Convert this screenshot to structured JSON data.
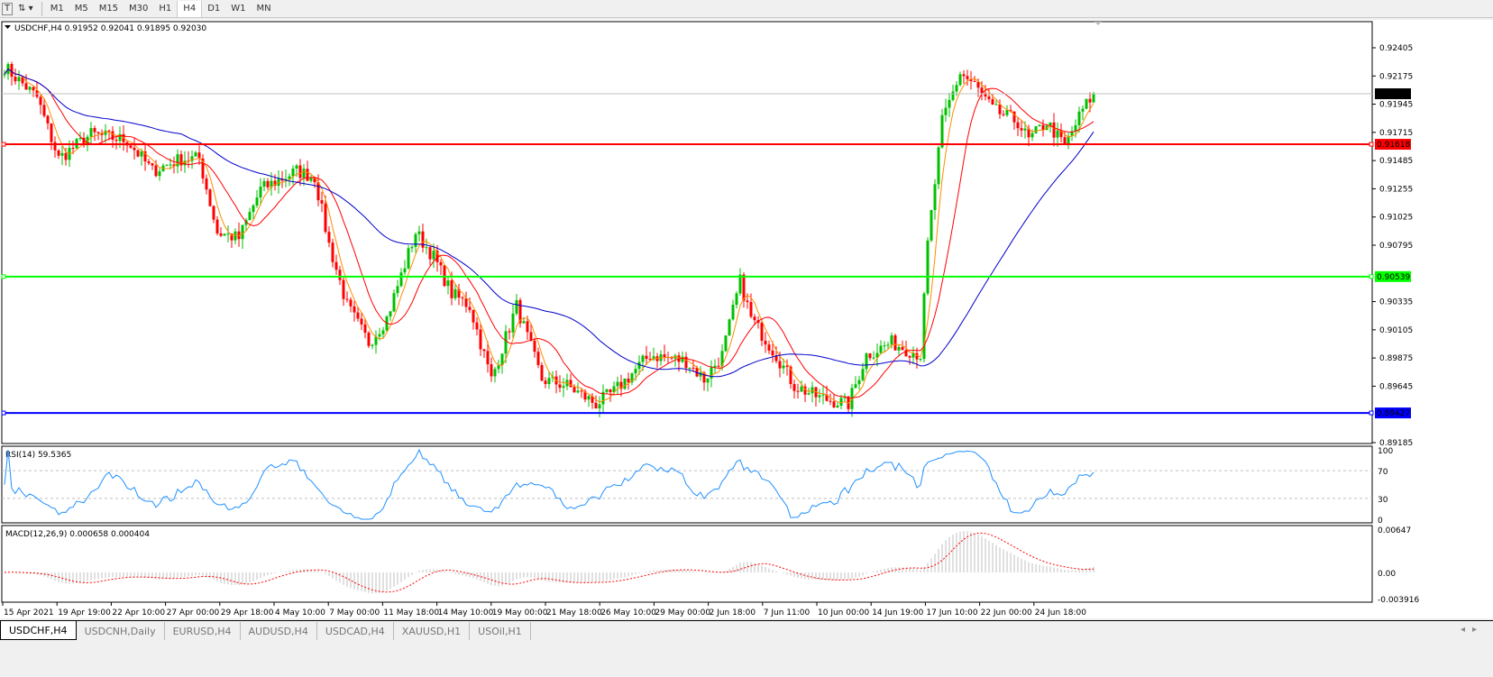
{
  "toolbar": {
    "text_icon": "T",
    "draw_icon": "crosshair-arrows-icon",
    "timeframes": [
      "M1",
      "M5",
      "M15",
      "M30",
      "H1",
      "H4",
      "D1",
      "W1",
      "MN"
    ],
    "active": "H4"
  },
  "chart": {
    "header": "USDCHF,H4  0.91952 0.92041 0.91895 0.92030",
    "price_ticks": [
      "0.92405",
      "0.92175",
      "0.91945",
      "0.91715",
      "0.91485",
      "0.91255",
      "0.91025",
      "0.90795",
      "0.90335",
      "0.90105",
      "0.89875",
      "0.89645",
      "0.89185"
    ],
    "price_tick_values": [
      0.92405,
      0.92175,
      0.91945,
      0.91715,
      0.91485,
      0.91255,
      0.91025,
      0.90795,
      0.90335,
      0.90105,
      0.89875,
      0.89645,
      0.89185
    ],
    "current_price": {
      "label": "0.92030",
      "value": 0.9203,
      "color": "#000000"
    },
    "levels": [
      {
        "label": "0.91618",
        "value": 0.91618,
        "color": "#ff0000"
      },
      {
        "label": "0.90539",
        "value": 0.90539,
        "color": "#00ff00"
      },
      {
        "label": "0.89427",
        "value": 0.89427,
        "color": "#0000ff"
      }
    ],
    "time_labels": [
      "15 Apr 2021",
      "19 Apr 19:00",
      "22 Apr 10:00",
      "27 Apr 00:00",
      "29 Apr 18:00",
      "4 May 10:00",
      "7 May 00:00",
      "11 May 18:00",
      "14 May 10:00",
      "19 May 00:00",
      "21 May 18:00",
      "26 May 10:00",
      "29 May 00:00",
      "2 Jun 18:00",
      "7 Jun 11:00",
      "10 Jun 00:00",
      "14 Jun 19:00",
      "17 Jun 10:00",
      "22 Jun 00:00",
      "24 Jun 18:00"
    ],
    "colors": {
      "bull": "#00c000",
      "bear": "#ff0000",
      "ma_fast": "#ff8c00",
      "ma_mid": "#ff0000",
      "ma_slow": "#0000cc",
      "rsi": "#1e90ff",
      "macd_hist": "#c0c0c0",
      "macd_signal": "#ff0000"
    }
  },
  "chart_data": {
    "type": "candlestick",
    "symbol": "USDCHF",
    "timeframe": "H4",
    "close_path": [
      [
        0,
        0.9225
      ],
      [
        9,
        0.92
      ],
      [
        15,
        0.915
      ],
      [
        24,
        0.917
      ],
      [
        34,
        0.9165
      ],
      [
        41,
        0.914
      ],
      [
        49,
        0.915
      ],
      [
        54,
        0.915
      ],
      [
        59,
        0.909
      ],
      [
        65,
        0.9085
      ],
      [
        71,
        0.9125
      ],
      [
        81,
        0.914
      ],
      [
        86,
        0.9135
      ],
      [
        90,
        0.908
      ],
      [
        95,
        0.903
      ],
      [
        101,
        0.9
      ],
      [
        106,
        0.902
      ],
      [
        114,
        0.909
      ],
      [
        119,
        0.907
      ],
      [
        124,
        0.904
      ],
      [
        129,
        0.903
      ],
      [
        135,
        0.897
      ],
      [
        142,
        0.903
      ],
      [
        149,
        0.897
      ],
      [
        156,
        0.8965
      ],
      [
        164,
        0.895
      ],
      [
        169,
        0.896
      ],
      [
        179,
        0.899
      ],
      [
        189,
        0.8985
      ],
      [
        194,
        0.897
      ],
      [
        199,
        0.899
      ],
      [
        204,
        0.905
      ],
      [
        207,
        0.902
      ],
      [
        214,
        0.899
      ],
      [
        219,
        0.8965
      ],
      [
        226,
        0.8955
      ],
      [
        234,
        0.895
      ],
      [
        239,
        0.899
      ],
      [
        246,
        0.9
      ],
      [
        254,
        0.899
      ],
      [
        256,
        0.908
      ],
      [
        260,
        0.918
      ],
      [
        265,
        0.922
      ],
      [
        269,
        0.921
      ],
      [
        274,
        0.919
      ],
      [
        281,
        0.918
      ],
      [
        284,
        0.9165
      ],
      [
        289,
        0.918
      ],
      [
        294,
        0.916
      ],
      [
        299,
        0.919
      ],
      [
        302,
        0.9203
      ]
    ],
    "ylim": [
      0.89185,
      0.92405
    ]
  },
  "rsi": {
    "label": "RSI(14) 59.5365",
    "ticks": [
      "100",
      "70",
      "30",
      "0"
    ],
    "levels": [
      70,
      30
    ]
  },
  "macd": {
    "label": "MACD(12,26,9) 0.000658 0.000404",
    "ticks": [
      "0.00647",
      "0.00",
      "-0.003916"
    ],
    "range": [
      -0.003916,
      0.00647
    ]
  },
  "tabs": [
    "USDCHF,H4",
    "USDCNH,Daily",
    "EURUSD,H4",
    "AUDUSD,H4",
    "USDCAD,H4",
    "XAUUSD,H1",
    "USOil,H1"
  ],
  "scroll": {
    "left": "◂",
    "right": "▸"
  }
}
